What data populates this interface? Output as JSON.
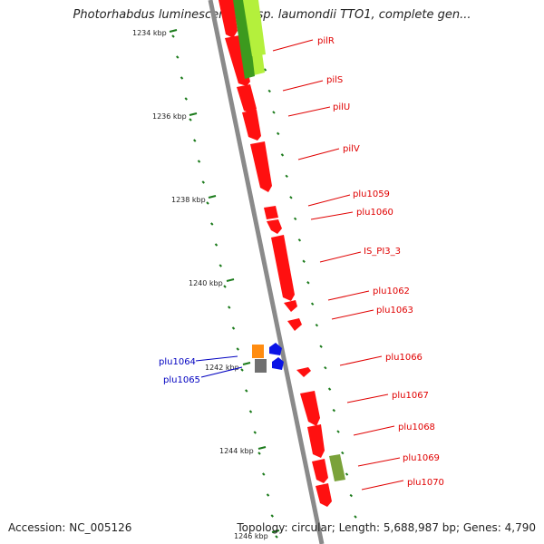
{
  "title": "Photorhabdus luminescens subsp. laumondii TTO1, complete gen...",
  "accession": "Accession: NC_005126",
  "summary": "Topology: circular; Length: 5,688,987 bp; Genes: 4,790",
  "colors": {
    "backbone": "#8a8a8a",
    "gene_red": "#ff1010",
    "gene_blue": "#0a14e6",
    "gene_green_light": "#b4f03c",
    "gene_green_dark": "#3c9a1e",
    "gene_olive": "#7aa23a",
    "gene_orange": "#ff8c10",
    "gene_gray": "#707070",
    "tick_green": "#1a7a1a",
    "label_red": "#e00000",
    "label_blue": "#0000c0"
  },
  "scale_labels": [
    {
      "text": "1234 kbp",
      "kbp": 1234
    },
    {
      "text": "1236 kbp",
      "kbp": 1236
    },
    {
      "text": "1238 kbp",
      "kbp": 1238
    },
    {
      "text": "1240 kbp",
      "kbp": 1240
    },
    {
      "text": "1242 kbp",
      "kbp": 1242
    },
    {
      "text": "1244 kbp",
      "kbp": 1244
    },
    {
      "text": "1246 kbp",
      "kbp": 1246
    }
  ],
  "gene_labels_right": [
    "pilR",
    "pilS",
    "pilU",
    "pilV",
    "plu1059",
    "plu1060",
    "IS_PI3_3",
    "plu1062",
    "plu1063",
    "plu1066",
    "plu1067",
    "plu1068",
    "plu1069",
    "plu1070"
  ],
  "gene_labels_left": [
    "plu1064",
    "plu1065"
  ]
}
